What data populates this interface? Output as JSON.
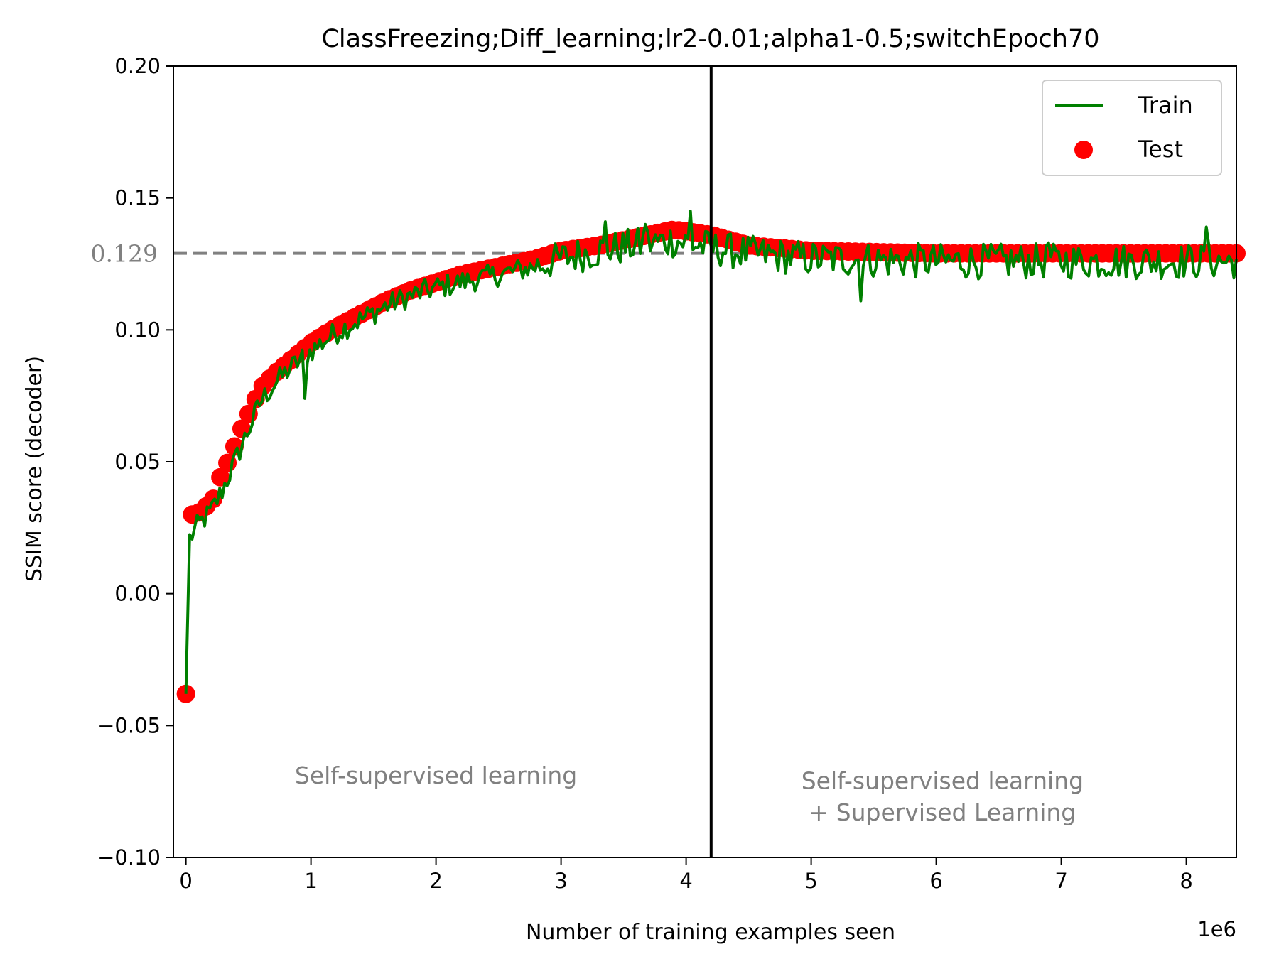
{
  "chart_data": {
    "type": "line",
    "title": "ClassFreezing;Diff_learning;lr2-0.01;alpha1-0.5;switchEpoch70",
    "xlabel": "Number of training examples seen",
    "ylabel": "SSIM score (decoder)",
    "x_offset_label": "1e6",
    "xlim": [
      -0.1,
      8.4
    ],
    "ylim": [
      -0.1,
      0.2
    ],
    "x_ticks": [
      0,
      1,
      2,
      3,
      4,
      5,
      6,
      7,
      8
    ],
    "x_tick_labels": [
      "0",
      "1",
      "2",
      "3",
      "4",
      "5",
      "6",
      "7",
      "8"
    ],
    "y_ticks": [
      -0.1,
      -0.05,
      0.0,
      0.05,
      0.1,
      0.15,
      0.2
    ],
    "y_tick_labels": [
      "−0.10",
      "−0.05",
      "0.00",
      "0.05",
      "0.10",
      "0.15",
      "0.20"
    ],
    "reference_line": {
      "y": 0.129,
      "label": "0.129",
      "color": "#808080"
    },
    "switch_line": {
      "x": 4.2,
      "color": "#000000"
    },
    "annotations": [
      {
        "text": "Self-supervised learning",
        "x": 2.0,
        "y": -0.072
      },
      {
        "text": "Self-supervised learning",
        "x": 6.05,
        "y": -0.074
      },
      {
        "text": "+ Supervised Learning",
        "x": 6.05,
        "y": -0.086
      }
    ],
    "legend": {
      "position": "top-right",
      "entries": [
        "Train",
        "Test"
      ]
    },
    "series": [
      {
        "name": "Train",
        "kind": "line",
        "color": "#008000",
        "anchors_x": [
          0.0,
          0.03,
          0.1,
          0.2,
          0.3,
          0.4,
          0.5,
          0.6,
          0.7,
          0.8,
          0.9,
          1.0,
          1.2,
          1.4,
          1.6,
          1.8,
          2.0,
          2.2,
          2.4,
          2.6,
          2.8,
          3.0,
          3.3,
          3.6,
          3.9,
          4.2,
          4.5,
          5.0,
          6.0,
          7.0,
          8.0,
          8.4
        ],
        "anchors_y": [
          -0.038,
          0.021,
          0.026,
          0.031,
          0.04,
          0.051,
          0.062,
          0.073,
          0.079,
          0.084,
          0.088,
          0.092,
          0.099,
          0.104,
          0.109,
          0.113,
          0.116,
          0.118,
          0.12,
          0.122,
          0.124,
          0.127,
          0.13,
          0.132,
          0.134,
          0.131,
          0.129,
          0.127,
          0.126,
          0.126,
          0.126,
          0.126
        ],
        "n_points": 420,
        "noise": 0.0045,
        "spikes": [
          {
            "x": 0.95,
            "y": 0.074
          },
          {
            "x": 3.35,
            "y": 0.141
          },
          {
            "x": 3.68,
            "y": 0.14
          },
          {
            "x": 4.03,
            "y": 0.145
          },
          {
            "x": 5.4,
            "y": 0.111
          },
          {
            "x": 6.9,
            "y": 0.133
          },
          {
            "x": 8.15,
            "y": 0.139
          }
        ]
      },
      {
        "name": "Test",
        "kind": "scatter",
        "color": "#ff0000",
        "anchors_x": [
          0.0,
          0.05,
          0.12,
          0.24,
          0.28,
          0.36,
          0.42,
          0.48,
          0.55,
          0.6,
          0.7,
          0.8,
          0.9,
          1.0,
          1.2,
          1.4,
          1.6,
          1.8,
          2.0,
          2.2,
          2.4,
          2.6,
          2.8,
          3.0,
          3.3,
          3.6,
          3.9,
          4.2,
          4.5,
          5.0,
          6.0,
          7.0,
          8.0,
          8.4
        ],
        "anchors_y": [
          -0.038,
          0.03,
          0.031,
          0.037,
          0.045,
          0.052,
          0.06,
          0.066,
          0.073,
          0.078,
          0.083,
          0.087,
          0.091,
          0.095,
          0.101,
          0.106,
          0.111,
          0.115,
          0.118,
          0.121,
          0.123,
          0.125,
          0.127,
          0.13,
          0.132,
          0.135,
          0.138,
          0.136,
          0.132,
          0.13,
          0.129,
          0.129,
          0.129,
          0.129
        ],
        "n_points": 150
      }
    ]
  }
}
